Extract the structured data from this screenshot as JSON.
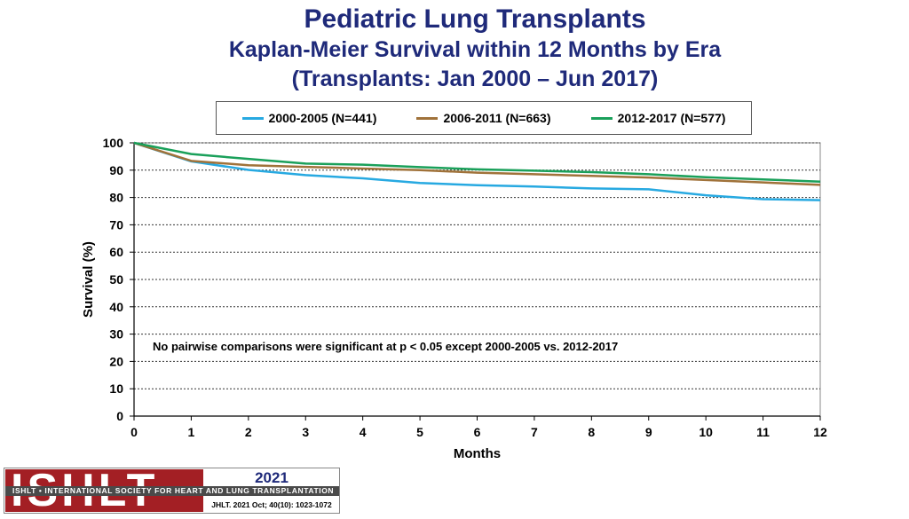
{
  "header": {
    "title": "Pediatric Lung Transplants",
    "subtitle": "Kaplan-Meier Survival within 12 Months by Era",
    "subtitle2": "(Transplants: Jan 2000 – Jun 2017)"
  },
  "chart_data": {
    "type": "line",
    "title": "Kaplan-Meier Survival within 12 Months by Era",
    "xlabel": "Months",
    "ylabel": "Survival (%)",
    "xlim": [
      0,
      12
    ],
    "ylim": [
      0,
      100
    ],
    "x_ticks": [
      "0",
      "1",
      "2",
      "3",
      "4",
      "5",
      "6",
      "7",
      "8",
      "9",
      "10",
      "11",
      "12"
    ],
    "y_ticks": [
      "0",
      "10",
      "20",
      "30",
      "40",
      "50",
      "60",
      "70",
      "80",
      "90",
      "100"
    ],
    "grid": "horizontal dashed",
    "annotation": "No pairwise comparisons were significant at p < 0.05 except 2000-2005 vs. 2012-2017",
    "x": [
      0,
      1,
      2,
      3,
      4,
      5,
      6,
      7,
      8,
      9,
      10,
      11,
      12
    ],
    "series": [
      {
        "name": "2000-2005 (N=441)",
        "color": "#27a9e1",
        "values": [
          100,
          93.2,
          90.1,
          88.2,
          87.0,
          85.3,
          84.5,
          84.0,
          83.3,
          83.0,
          80.8,
          79.4,
          79.0
        ]
      },
      {
        "name": "2006-2011 (N=663)",
        "color": "#a0723a",
        "values": [
          100,
          93.4,
          91.8,
          91.2,
          90.6,
          90.0,
          89.1,
          88.5,
          87.9,
          87.3,
          86.4,
          85.5,
          84.6
        ]
      },
      {
        "name": "2012-2017 (N=577)",
        "color": "#1aa05a",
        "values": [
          100,
          95.9,
          94.1,
          92.4,
          92.0,
          91.1,
          90.3,
          89.8,
          89.3,
          88.5,
          87.4,
          86.6,
          85.8
        ]
      }
    ]
  },
  "footer": {
    "logo": "ISHLT",
    "org": "ISHLT • INTERNATIONAL SOCIETY FOR HEART AND LUNG TRANSPLANTATION",
    "year": "2021",
    "citation": "JHLT. 2021 Oct; 40(10): 1023-1072"
  }
}
